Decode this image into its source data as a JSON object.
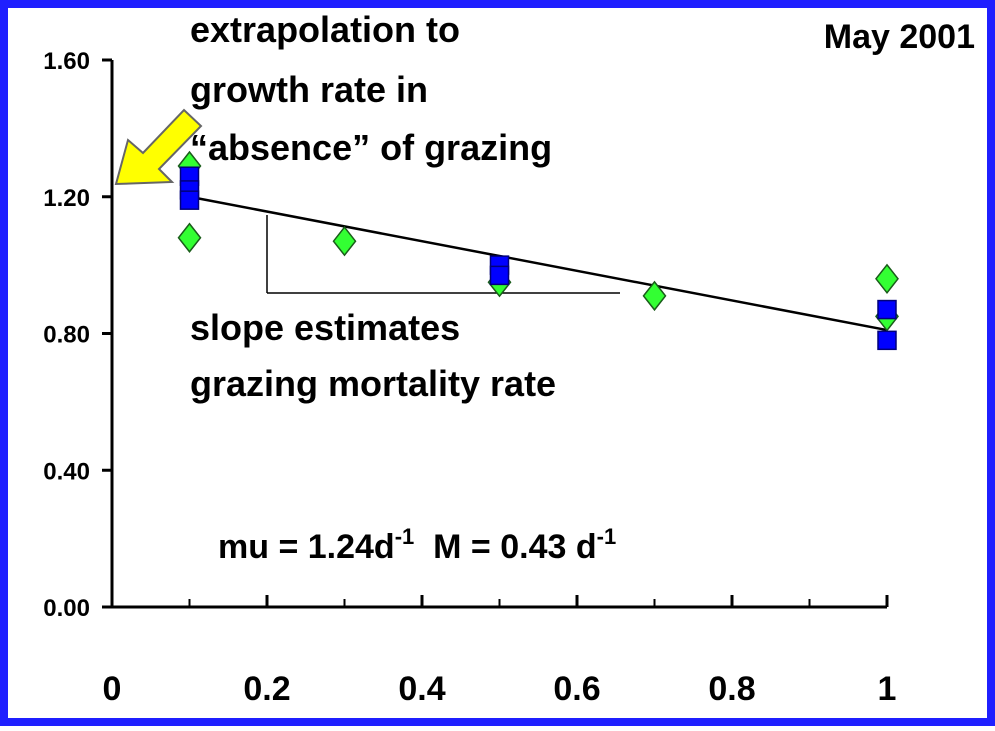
{
  "chart_data": {
    "type": "scatter",
    "title": "May 2001",
    "annotations": {
      "extrapolation": [
        "extrapolation to",
        "growth rate in",
        "“absence” of grazing"
      ],
      "slope": [
        "slope estimates",
        "grazing mortality rate"
      ],
      "equation": [
        "mu = 1.24d",
        "-1",
        "  M = 0.43 d",
        "-1"
      ]
    },
    "series": [
      {
        "color": "#33ff33",
        "marker": "diamond",
        "x": [
          0.1,
          0.1,
          0.3,
          0.5,
          0.7,
          1,
          1
        ],
        "values": [
          1.29,
          1.08,
          1.07,
          0.95,
          0.91,
          0.96,
          0.85
        ]
      },
      {
        "color": "#0000ff",
        "marker": "square",
        "x": [
          0.1,
          0.1,
          0.1,
          0.5,
          0.5,
          1,
          1
        ],
        "values": [
          1.26,
          1.22,
          1.19,
          1.0,
          0.97,
          0.87,
          0.78
        ]
      }
    ],
    "fit": {
      "color": "#000000",
      "x": [
        0.1,
        1
      ],
      "values": [
        1.2,
        0.81
      ]
    },
    "xlim": [
      0,
      1
    ],
    "ylim": [
      0,
      1.6
    ],
    "xticks": [
      0,
      0.2,
      0.4,
      0.6,
      0.8,
      1
    ],
    "xminor_ticks": [
      0.1,
      0.3,
      0.5,
      0.7,
      0.9
    ],
    "yticks": [
      {
        "value": 0,
        "label": "0.00"
      },
      {
        "value": 0.4,
        "label": "0.40"
      },
      {
        "value": 0.8,
        "label": "0.80"
      },
      {
        "value": 1.2,
        "label": "1.20"
      },
      {
        "value": 1.6,
        "label": "1.60"
      }
    ]
  }
}
